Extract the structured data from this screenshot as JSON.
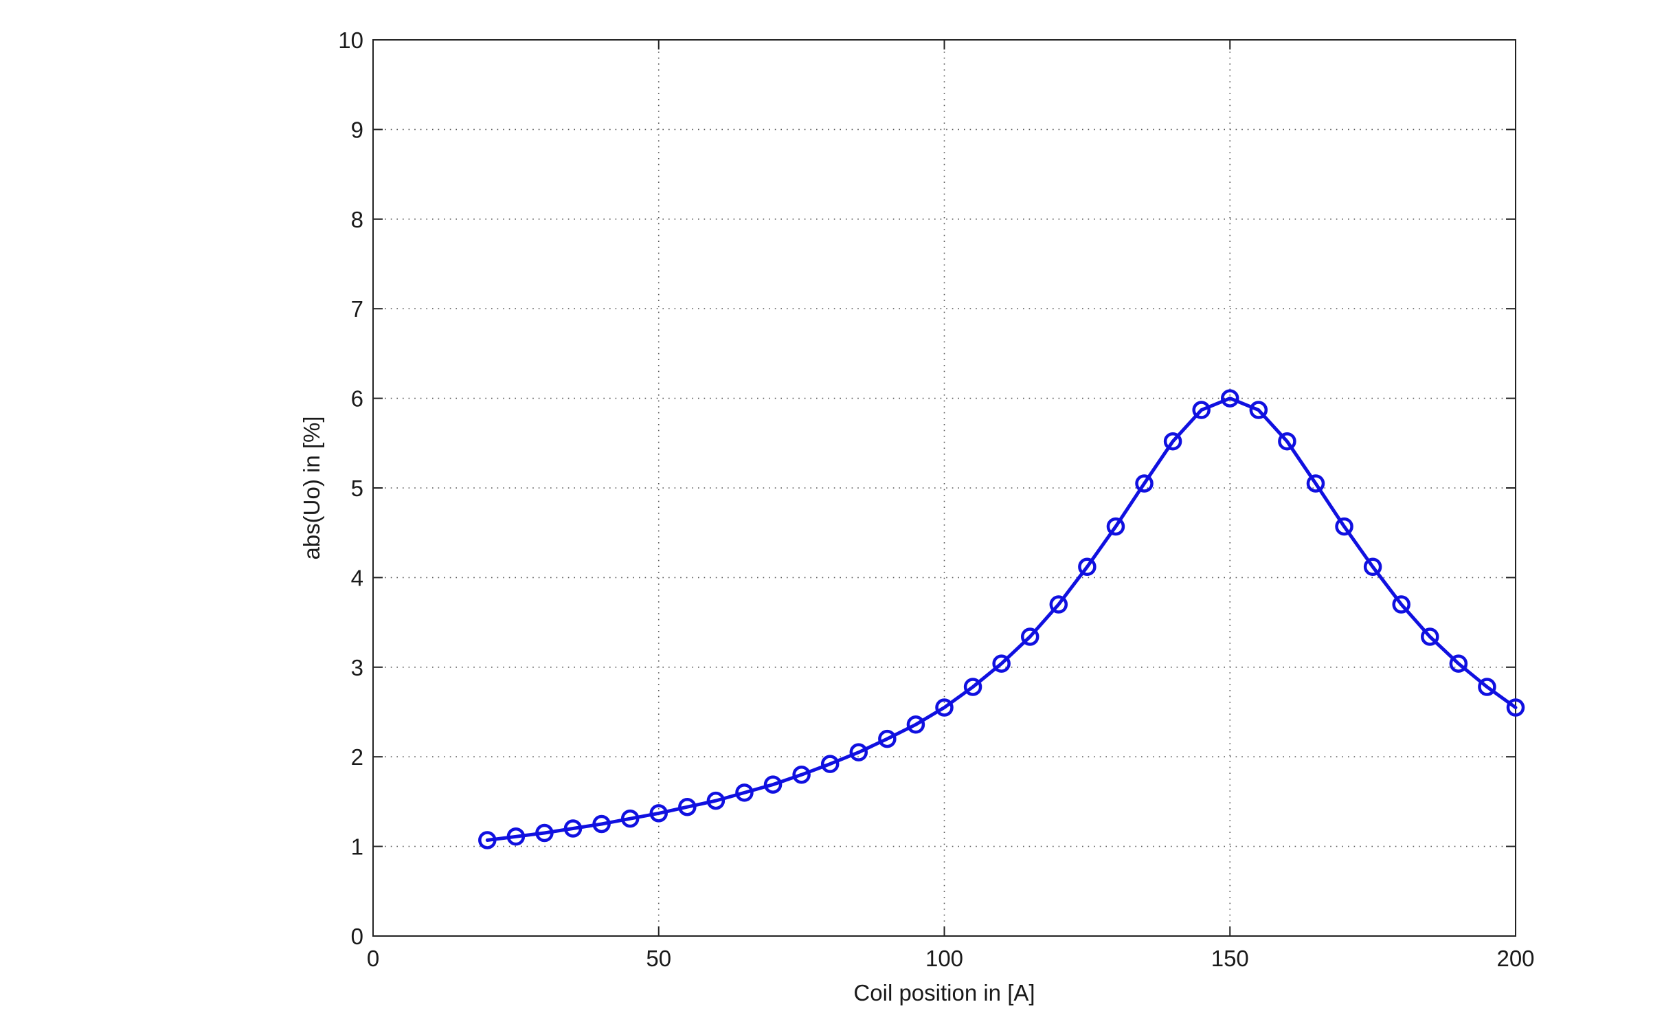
{
  "chart_data": {
    "type": "line",
    "xlabel": "Coil position in [A]",
    "ylabel": "abs(Uo) in [%]",
    "xlim": [
      0,
      200
    ],
    "ylim": [
      0,
      10
    ],
    "xticks": [
      0,
      50,
      100,
      150,
      200
    ],
    "yticks": [
      0,
      1,
      2,
      3,
      4,
      5,
      6,
      7,
      8,
      9,
      10
    ],
    "xtick_labels": [
      "0",
      "50",
      "100",
      "150",
      "200"
    ],
    "ytick_labels": [
      "0",
      "1",
      "2",
      "3",
      "4",
      "5",
      "6",
      "7",
      "8",
      "9",
      "10"
    ],
    "grid": true,
    "marker": "circle",
    "color": "#1010e0",
    "series": [
      {
        "x": [
          20,
          25,
          30,
          35,
          40,
          45,
          50,
          55,
          60,
          65,
          70,
          75,
          80,
          85,
          90,
          95,
          100,
          105,
          110,
          115,
          120,
          125,
          130,
          135,
          140,
          145,
          150,
          155,
          160,
          165,
          170,
          175,
          180,
          185,
          190,
          195,
          200
        ],
        "y": [
          1.07,
          1.11,
          1.15,
          1.2,
          1.25,
          1.31,
          1.37,
          1.44,
          1.51,
          1.6,
          1.69,
          1.8,
          1.92,
          2.05,
          2.2,
          2.36,
          2.55,
          2.78,
          3.04,
          3.34,
          3.7,
          4.12,
          4.57,
          5.05,
          5.52,
          5.87,
          6.0,
          5.87,
          5.52,
          5.05,
          4.57,
          4.12,
          3.7,
          3.34,
          3.04,
          2.78,
          2.55
        ]
      }
    ]
  }
}
